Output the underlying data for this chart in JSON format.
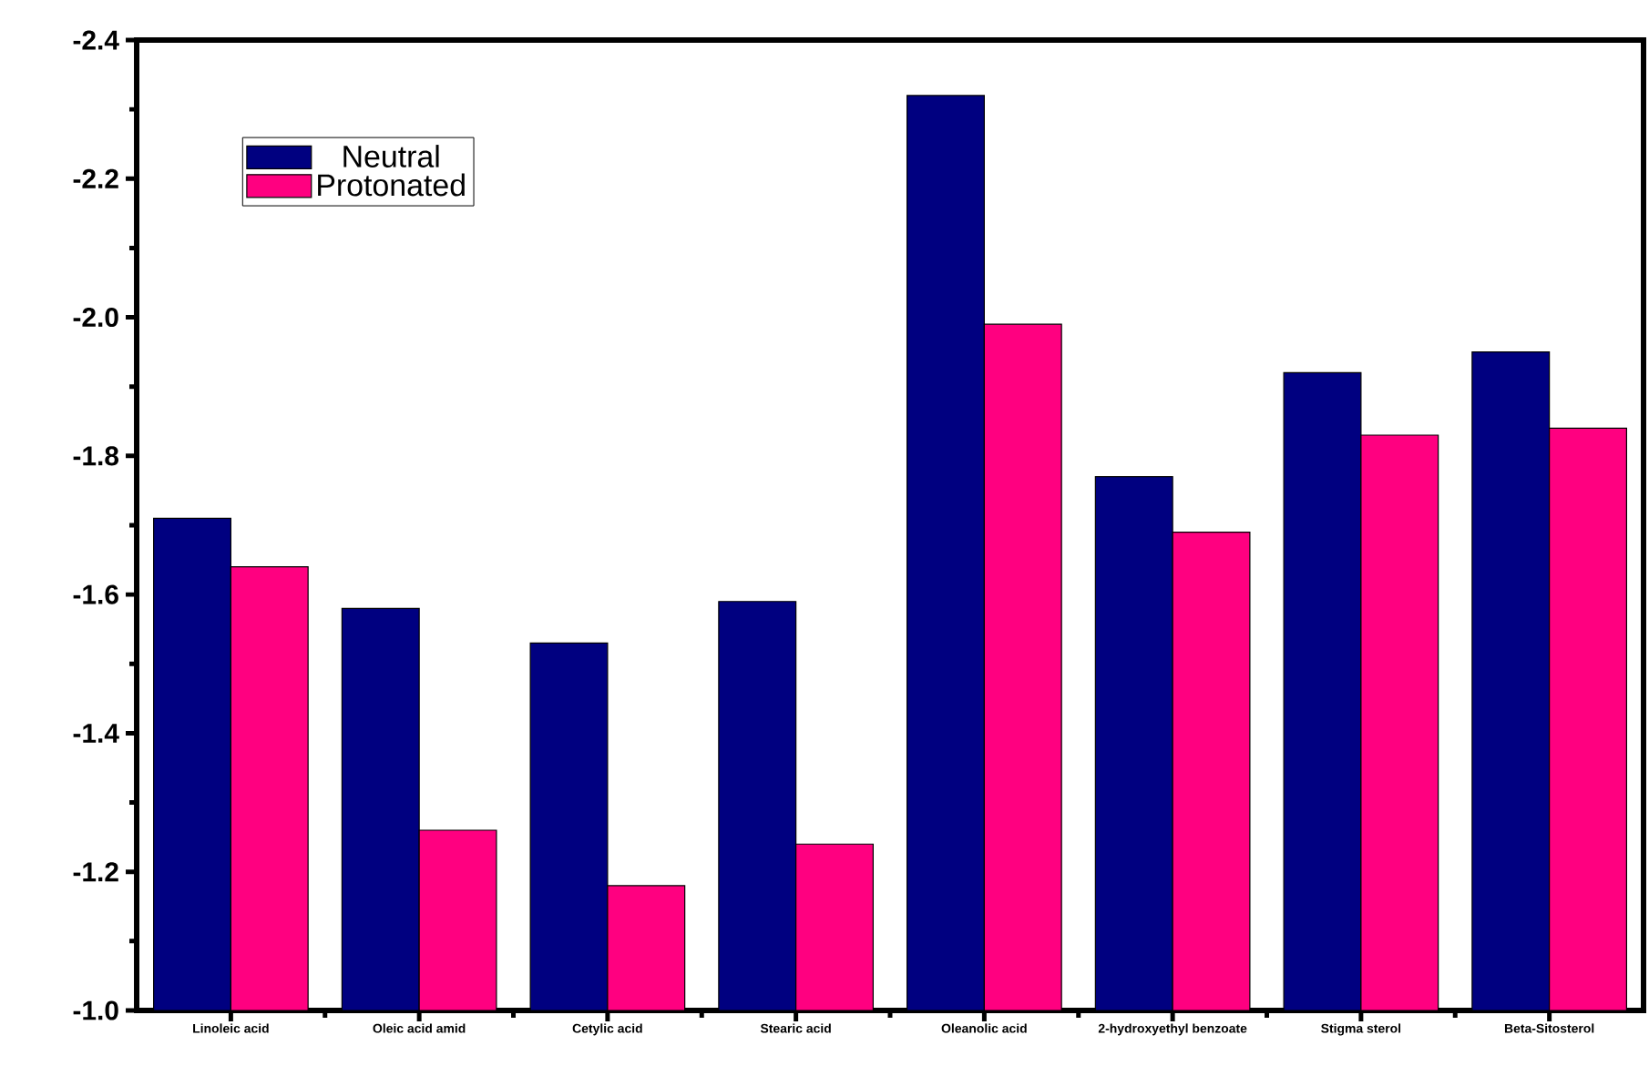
{
  "chart_data": {
    "type": "bar",
    "categories": [
      "Linoleic acid",
      "Oleic acid amid",
      "Cetylic acid",
      "Stearic acid",
      "Oleanolic acid",
      "2-hydroxyethyl benzoate",
      "Stigma sterol",
      "Beta-Sitosterol"
    ],
    "series": [
      {
        "name": "Neutral",
        "color": "#000080",
        "values": [
          -1.71,
          -1.58,
          -1.53,
          -1.59,
          -2.32,
          -1.77,
          -1.92,
          -1.95
        ]
      },
      {
        "name": "Protonated",
        "color": "#ff0080",
        "values": [
          -1.64,
          -1.26,
          -1.18,
          -1.24,
          -1.99,
          -1.69,
          -1.83,
          -1.84
        ]
      }
    ],
    "ylim": [
      -1.0,
      -2.4
    ],
    "yticks": [
      {
        "value": -1.0,
        "label": "-1.0"
      },
      -1.2,
      -1.4,
      -1.6,
      -1.8,
      {
        "value": -2.0,
        "label": "-2.0"
      },
      -2.2,
      -2.4
    ],
    "grid": false,
    "legend": "top left"
  }
}
